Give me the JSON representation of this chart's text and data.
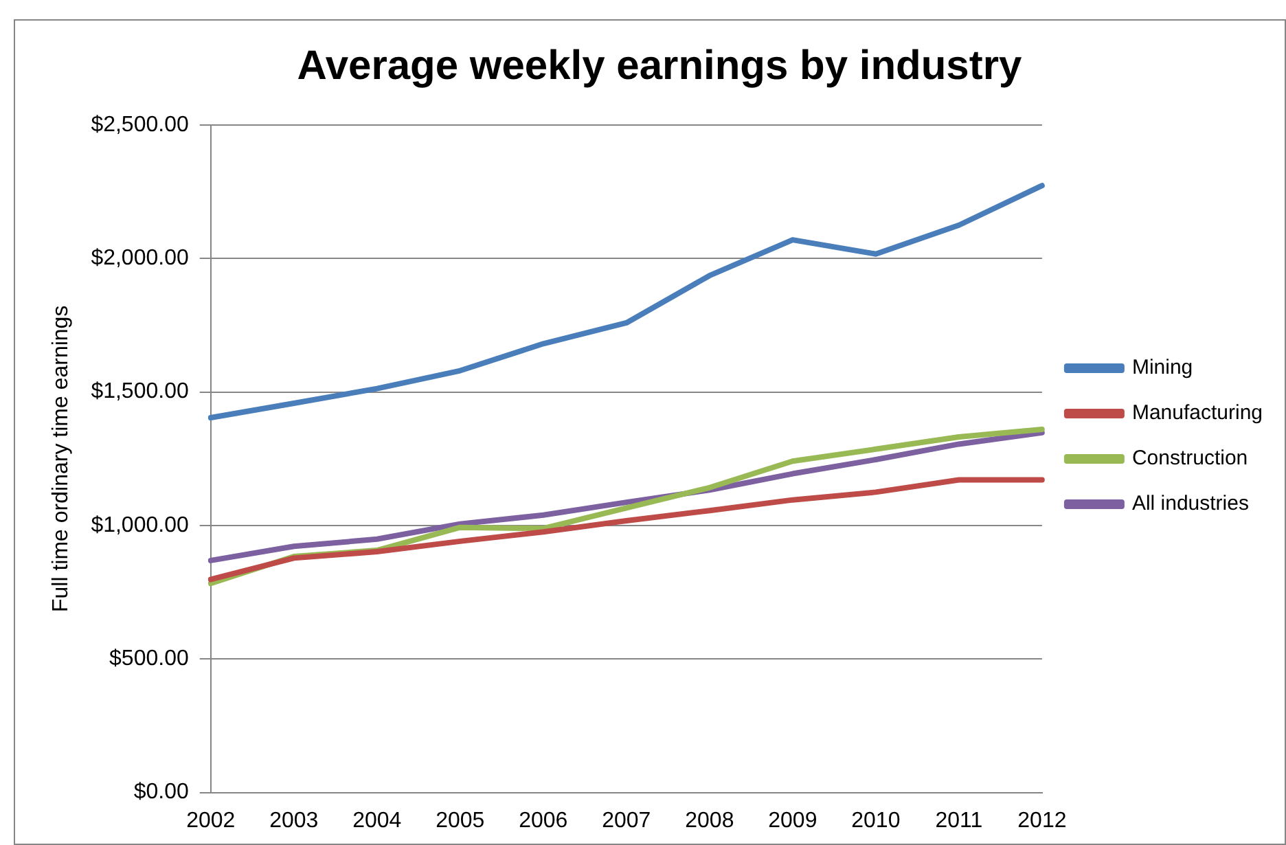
{
  "chart_data": {
    "type": "line",
    "title": "Average weekly earnings by industry",
    "ylabel": "Full time ordinary time earnings",
    "categories": [
      "2002",
      "2003",
      "2004",
      "2005",
      "2006",
      "2007",
      "2008",
      "2009",
      "2010",
      "2011",
      "2012"
    ],
    "series": [
      {
        "name": "Mining",
        "color": "#4a7ebb",
        "values": [
          1404,
          1458,
          1513,
          1580,
          1681,
          1759,
          1936,
          2070,
          2017,
          2125,
          2273
        ]
      },
      {
        "name": "Manufacturing",
        "color": "#be4b48",
        "values": [
          798,
          878,
          902,
          941,
          976,
          1018,
          1056,
          1096,
          1125,
          1171,
          1171
        ]
      },
      {
        "name": "Construction",
        "color": "#98b954",
        "values": [
          783,
          884,
          907,
          993,
          989,
          1066,
          1142,
          1241,
          1286,
          1332,
          1360
        ]
      },
      {
        "name": "All industries",
        "color": "#7d60a0",
        "values": [
          869,
          922,
          949,
          1006,
          1039,
          1087,
          1133,
          1194,
          1247,
          1305,
          1348
        ]
      }
    ],
    "ylim": [
      0,
      2500
    ],
    "yticks": [
      {
        "value": 0,
        "label": "$0.00"
      },
      {
        "value": 500,
        "label": "$500.00"
      },
      {
        "value": 1000,
        "label": "$1,000.00"
      },
      {
        "value": 1500,
        "label": "$1,500.00"
      },
      {
        "value": 2000,
        "label": "$2,000.00"
      },
      {
        "value": 2500,
        "label": "$2,500.00"
      }
    ],
    "grid": "y",
    "legend": "right",
    "marker": "none",
    "line_style": "solid"
  }
}
